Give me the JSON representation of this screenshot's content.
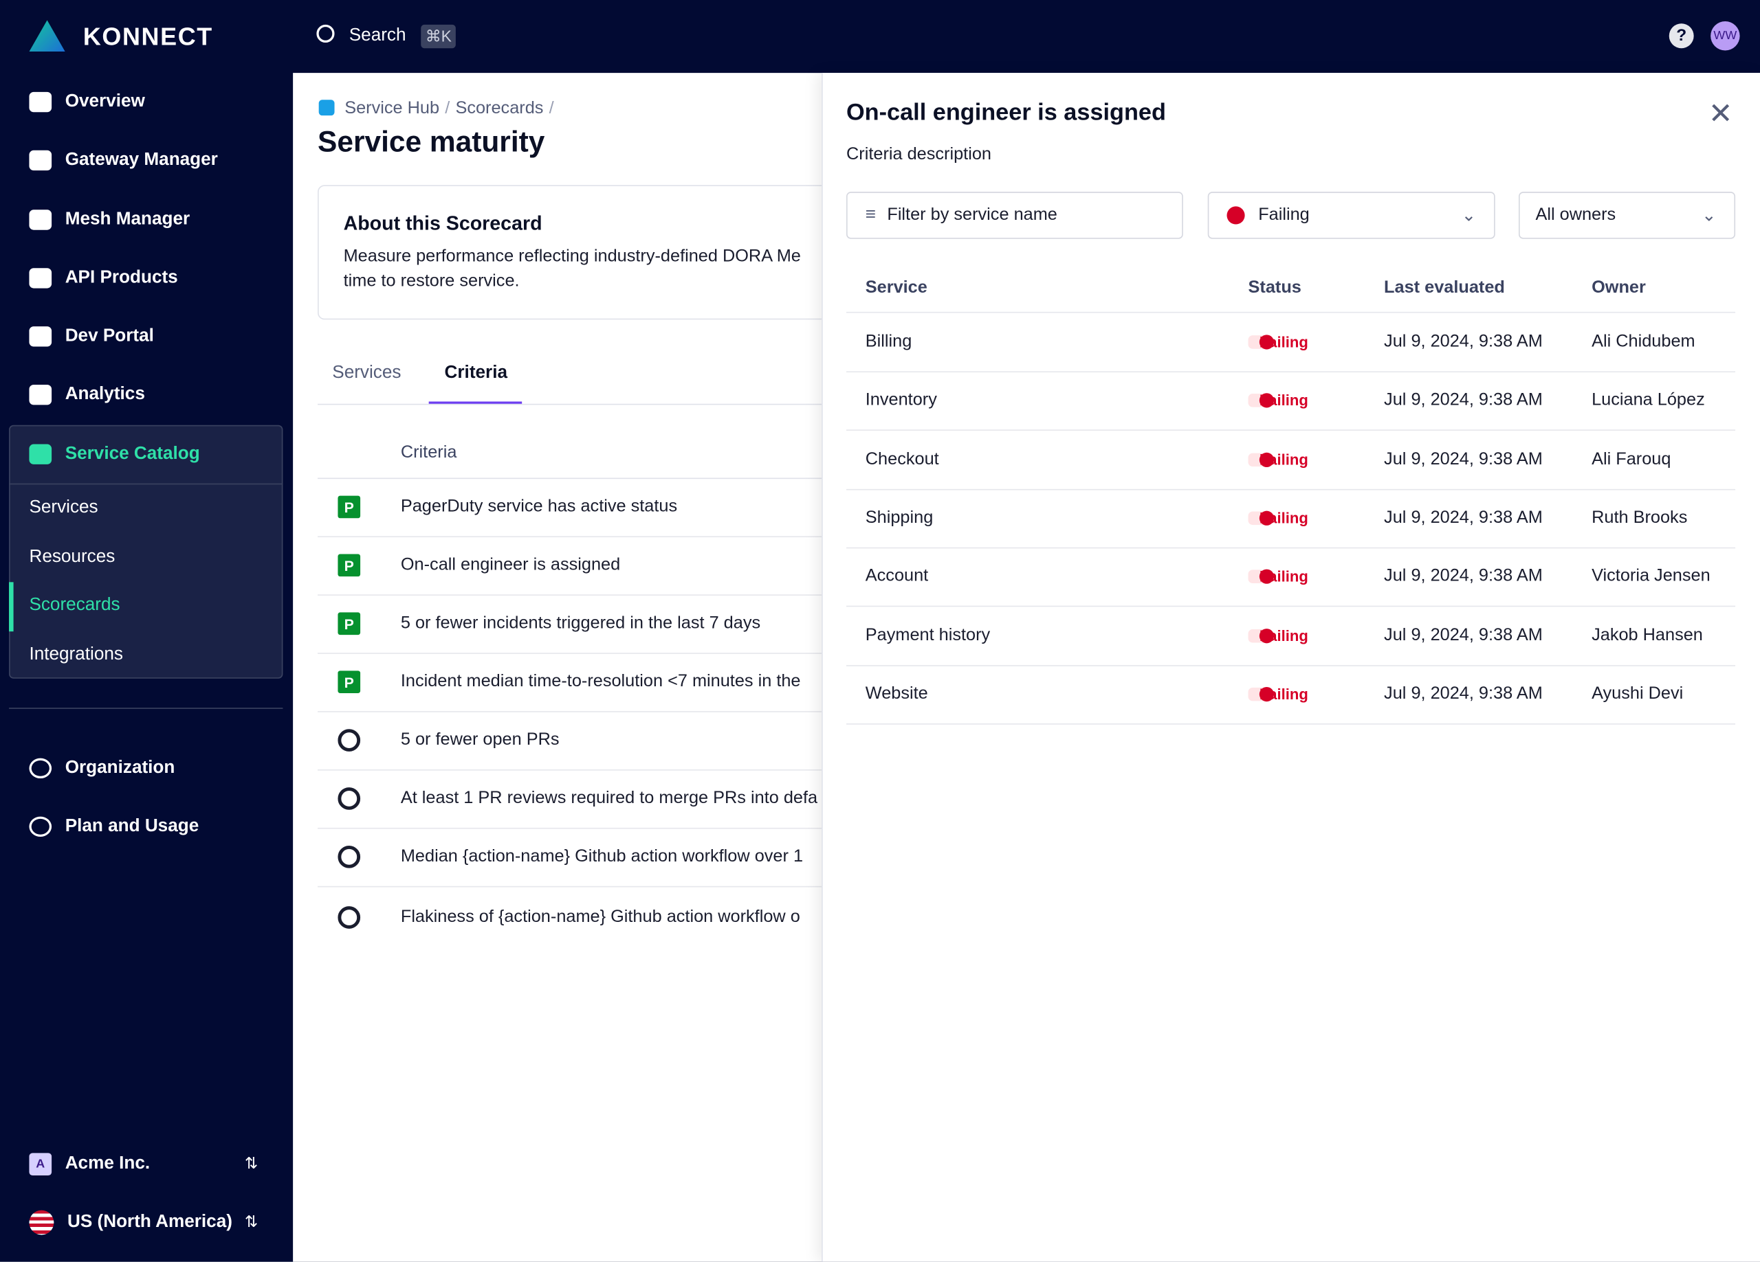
{
  "topbar": {
    "brand": "KONNECT",
    "search": "Search",
    "shortcut": "⌘K",
    "help": "?",
    "avatar": "WW"
  },
  "sidebar": {
    "items": [
      "Overview",
      "Gateway Manager",
      "Mesh Manager",
      "API Products",
      "Dev Portal",
      "Analytics"
    ],
    "catalog": {
      "title": "Service Catalog",
      "items": [
        "Services",
        "Resources",
        "Scorecards",
        "Integrations"
      ]
    },
    "bottom_items": [
      "Organization",
      "Plan and Usage"
    ],
    "org": {
      "badge": "A",
      "name": "Acme Inc."
    },
    "region": "US (North America)"
  },
  "page": {
    "breadcrumbs": [
      "Service Hub",
      "/",
      "Scorecards",
      "/"
    ],
    "title": "Service maturity",
    "about": {
      "title": "About this Scorecard",
      "text1": "Measure performance reflecting industry-defined DORA Me",
      "text2": "time to restore service."
    },
    "tabs": [
      "Services",
      "Criteria"
    ],
    "criteria_header": "Criteria",
    "criteria": [
      "PagerDuty service has active status",
      "On-call engineer is assigned",
      "5 or fewer incidents triggered in the last 7 days",
      "Incident median time-to-resolution <7 minutes in the",
      "5 or fewer open PRs",
      "At least 1 PR reviews required to merge PRs into defa",
      "Median {action-name} Github action workflow over 1",
      "Flakiness of {action-name} Github action workflow o"
    ]
  },
  "panel": {
    "title": "On-call engineer is assigned",
    "description": "Criteria description",
    "filter_placeholder": "Filter by service name",
    "status_filter": "Failing",
    "owner_filter": "All owners",
    "table": {
      "columns": [
        "Service",
        "Status",
        "Last evaluated",
        "Owner"
      ],
      "rows": [
        [
          "Billing",
          "Failing",
          "Jul 9, 2024, 9:38 AM",
          "Ali Chidubem"
        ],
        [
          "Inventory",
          "Failing",
          "Jul 9, 2024, 9:38 AM",
          "Luciana López"
        ],
        [
          "Checkout",
          "Failing",
          "Jul 9, 2024, 9:38 AM",
          "Ali Farouq"
        ],
        [
          "Shipping",
          "Failing",
          "Jul 9, 2024, 9:38 AM",
          "Ruth Brooks"
        ],
        [
          "Account",
          "Failing",
          "Jul 9, 2024, 9:38 AM",
          "Victoria Jensen"
        ],
        [
          "Payment history",
          "Failing",
          "Jul 9, 2024, 9:38 AM",
          "Jakob Hansen"
        ],
        [
          "Website",
          "Failing",
          "Jul 9, 2024, 9:38 AM",
          "Ayushi Devi"
        ]
      ]
    }
  }
}
